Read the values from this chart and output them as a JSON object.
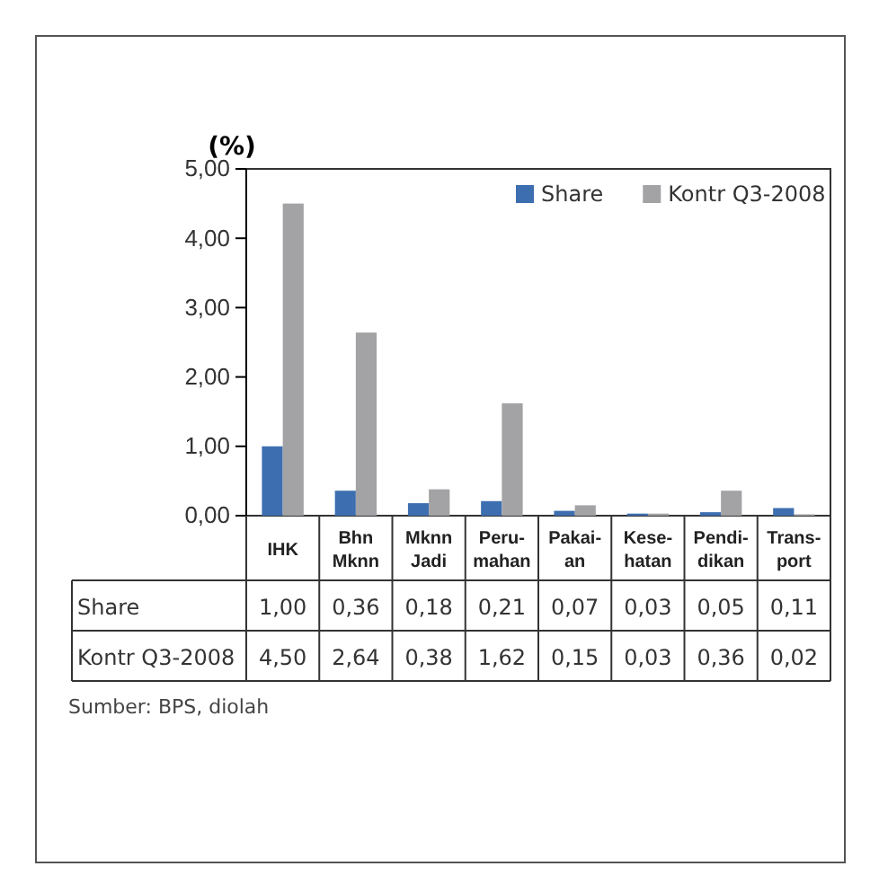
{
  "chart_data": {
    "type": "bar",
    "title": "(%)",
    "categories": [
      "IHK",
      "Bhn\nMknn",
      "Mknn\nJadi",
      "Peru-\nmahan",
      "Pakai-\nan",
      "Kese-\nhatan",
      "Pendi-\ndikan",
      "Trans-\nport"
    ],
    "series": [
      {
        "name": "Share",
        "color": "#3d6eb0",
        "values": [
          1.0,
          0.36,
          0.18,
          0.21,
          0.07,
          0.03,
          0.05,
          0.11
        ],
        "value_labels": [
          "1,00",
          "0,36",
          "0,18",
          "0,21",
          "0,07",
          "0,03",
          "0,05",
          "0,11"
        ]
      },
      {
        "name": "Kontr Q3-2008",
        "color": "#a3a3a6",
        "values": [
          4.5,
          2.64,
          0.38,
          1.62,
          0.15,
          0.03,
          0.36,
          0.02
        ],
        "value_labels": [
          "4,50",
          "2,64",
          "0,38",
          "1,62",
          "0,15",
          "0,03",
          "0,36",
          "0,02"
        ]
      }
    ],
    "ylim": [
      0,
      5
    ],
    "yticks": [
      {
        "value": 0,
        "label": "0,00"
      },
      {
        "value": 1,
        "label": "1,00"
      },
      {
        "value": 2,
        "label": "2,00"
      },
      {
        "value": 3,
        "label": "3,00"
      },
      {
        "value": 4,
        "label": "4,00"
      },
      {
        "value": 5,
        "label": "5,00"
      }
    ],
    "legend": "top right",
    "grid": false,
    "annotations": [
      "Sumber: BPS, diolah"
    ]
  }
}
